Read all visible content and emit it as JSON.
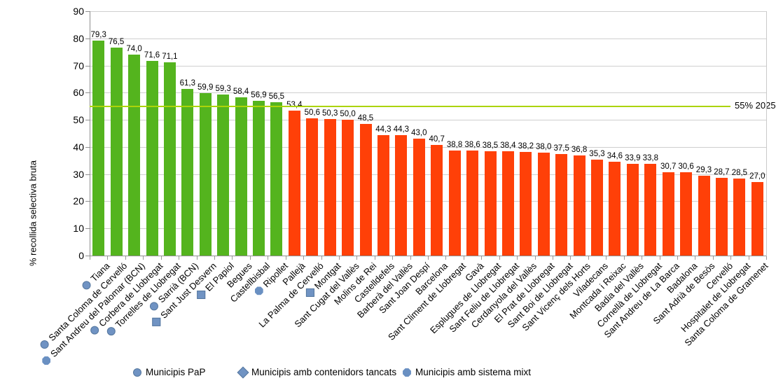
{
  "chart_data": {
    "type": "bar",
    "title": "",
    "ylabel": "% recollida selectiva bruta",
    "xlabel": "",
    "ylim": [
      0,
      90
    ],
    "ytick_step": 10,
    "grid": "horizontal",
    "threshold": {
      "value": 55,
      "label": "55% 2025"
    },
    "colors": {
      "above_threshold": "#54b41e",
      "below_threshold": "#ff4008",
      "threshold_line": "#acd40a",
      "marker_fill": "#7093c3",
      "marker_border": "#55779e"
    },
    "categories": [
      "Tiana",
      "Santa Coloma de Cervelló",
      "Sant Andreu del Palomar (BCN)",
      "Corbera de Llobregat",
      "Torrelles de Llobregat",
      "Sarrià (BCN)",
      "Sant Just Desvern",
      "El Papiol",
      "Begues",
      "Castellbisbal",
      "Ripollet",
      "Pallejà",
      "La Palma de Cervelló",
      "Montgat",
      "Sant Cugat del Vallès",
      "Molins de Rei",
      "Castelldefels",
      "Barberà del Vallès",
      "Sant Joan Despí",
      "Barcelona",
      "Sant Climent de Llobregat",
      "Gavà",
      "Esplugues de Llobregat",
      "Sant Feliu de Llobregat",
      "Cerdanyola del Vallès",
      "El Prat de Llobregat",
      "Sant Boi de Llobregat",
      "Sant Vicenç dels Horts",
      "Viladecans",
      "Montcada i Reixac",
      "Badia del Vallès",
      "Cornellà de Llobregat",
      "Sant Andreu de La Barca",
      "Badalona",
      "Sant Adrià de Besòs",
      "Cervelló",
      "Hospitalet de Llobregat",
      "Santa Coloma de Gramenet"
    ],
    "values": [
      79.3,
      76.5,
      74.0,
      71.6,
      71.1,
      61.3,
      59.9,
      59.3,
      58.4,
      56.9,
      56.5,
      53.4,
      50.6,
      50.3,
      50.0,
      48.5,
      44.3,
      44.3,
      43.0,
      40.7,
      38.8,
      38.6,
      38.5,
      38.4,
      38.2,
      38.0,
      37.5,
      36.8,
      35.3,
      34.6,
      33.9,
      33.8,
      30.7,
      30.6,
      29.3,
      28.7,
      28.5,
      27.0
    ],
    "markers": [
      "pap",
      "pap",
      "mixt",
      "pap",
      "pap",
      "pap",
      "tancats",
      "tancats",
      null,
      null,
      "mixt",
      null,
      null,
      "tancats",
      null,
      null,
      null,
      null,
      null,
      null,
      null,
      null,
      null,
      null,
      null,
      null,
      null,
      null,
      null,
      null,
      null,
      null,
      null,
      null,
      null,
      null,
      null,
      null
    ],
    "legend": [
      {
        "marker": "pap",
        "label": "Municipis PaP"
      },
      {
        "marker": "tancats",
        "label": "Municipis amb contenidors tancats"
      },
      {
        "marker": "mixt",
        "label": "Municipis amb sistema mixt"
      }
    ]
  }
}
